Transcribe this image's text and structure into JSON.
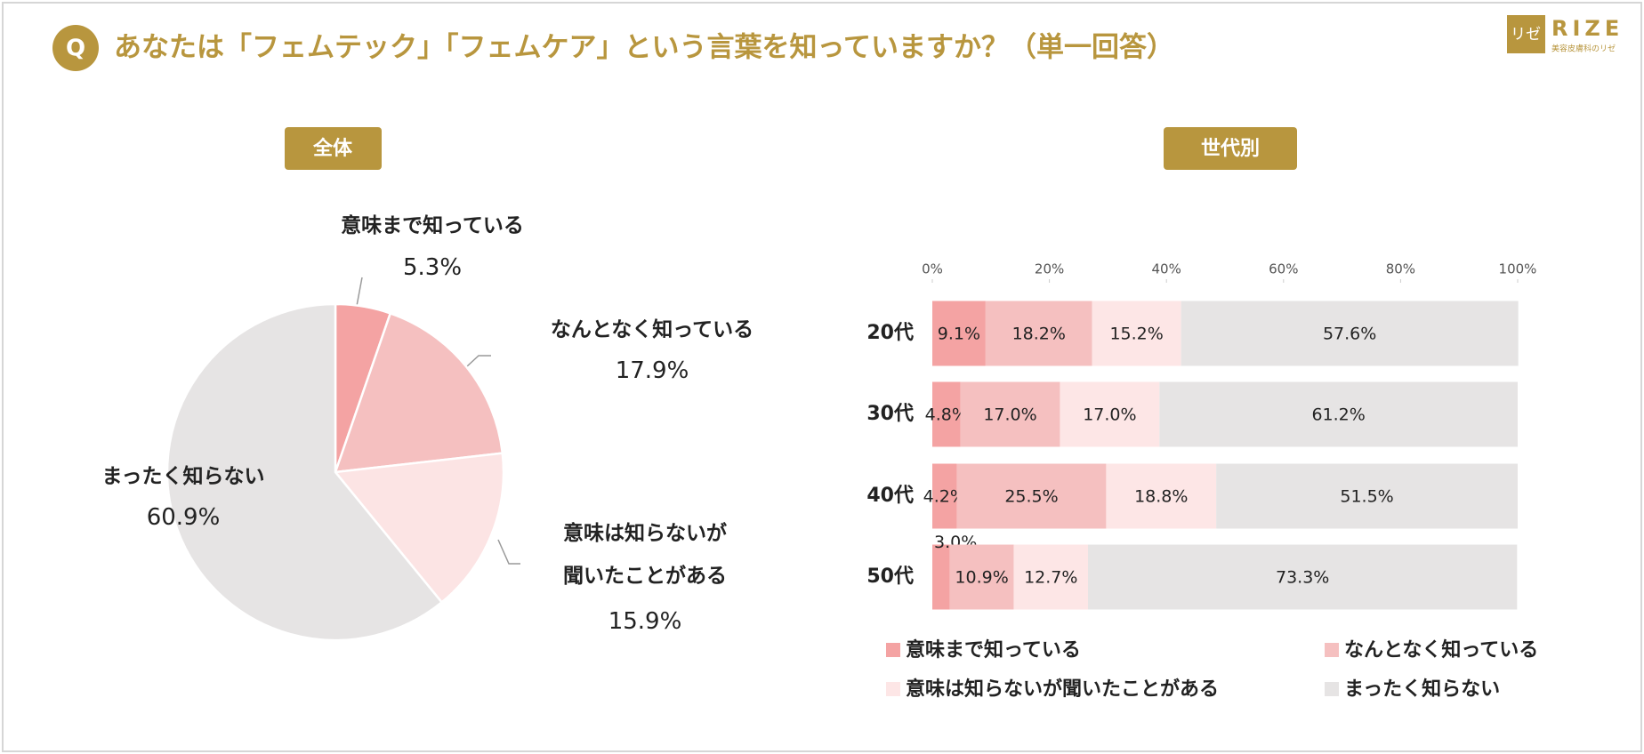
{
  "header": {
    "badge": "Q",
    "title": "あなたは「フェムテック」「フェムケア」という言葉を知っていますか？（単一回答）",
    "logo_mark": "リゼ",
    "logo": "RIZE",
    "logo_sub": "美容皮膚科のリゼ"
  },
  "chart_data": [
    {
      "type": "pie",
      "title": "全体",
      "categories": [
        "意味まで知っている",
        "なんとなく知っている",
        "意味は知らないが聞いたことがある",
        "まったく知らない"
      ],
      "values": [
        5.3,
        17.9,
        15.9,
        60.9
      ],
      "value_labels": [
        "5.3%",
        "17.9%",
        "15.9%",
        "60.9%"
      ],
      "colors": [
        "#f4a3a3",
        "#f5c0c0",
        "#fce4e4",
        "#e6e4e4"
      ]
    },
    {
      "type": "bar",
      "orientation": "horizontal",
      "stacked": true,
      "title": "世代別",
      "categories": [
        "20代",
        "30代",
        "40代",
        "50代"
      ],
      "series": [
        {
          "name": "意味まで知っている",
          "color": "#f4a3a3",
          "values": [
            9.1,
            4.8,
            4.2,
            3.0
          ],
          "value_labels": [
            "9.1%",
            "4.8%",
            "4.2%",
            "3.0%"
          ]
        },
        {
          "name": "なんとなく知っている",
          "color": "#f5c0c0",
          "values": [
            18.2,
            17.0,
            25.5,
            10.9
          ],
          "value_labels": [
            "18.2%",
            "17.0%",
            "25.5%",
            "10.9%"
          ]
        },
        {
          "name": "意味は知らないが聞いたことがある",
          "color": "#fde6e6",
          "values": [
            15.2,
            17.0,
            18.8,
            12.7
          ],
          "value_labels": [
            "15.2%",
            "17.0%",
            "18.8%",
            "12.7%"
          ]
        },
        {
          "name": "まったく知らない",
          "color": "#e6e4e4",
          "values": [
            57.6,
            61.2,
            51.5,
            73.3
          ],
          "value_labels": [
            "57.6%",
            "61.2%",
            "51.5%",
            "73.3%"
          ]
        }
      ],
      "xlim": [
        0,
        100
      ],
      "xticks": [
        {
          "value": 0,
          "label": "0%"
        },
        {
          "value": 20,
          "label": "20%"
        },
        {
          "value": 40,
          "label": "40%"
        },
        {
          "value": 60,
          "label": "60%"
        },
        {
          "value": 80,
          "label": "80%"
        },
        {
          "value": 100,
          "label": "100%"
        }
      ],
      "legend": "bottom"
    }
  ]
}
